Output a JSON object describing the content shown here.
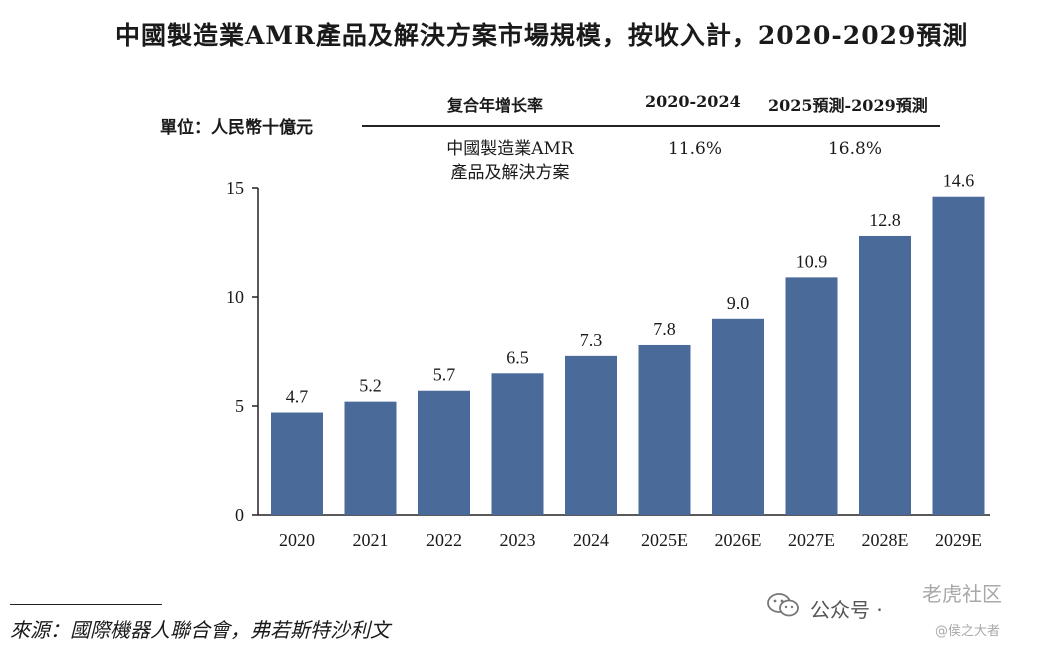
{
  "title": "中國製造業AMR產品及解決方案市場規模，按收入計，2020-2029預測",
  "unit_label": "單位：人民幣十億元",
  "cagr_table": {
    "header": "复合年增长率",
    "col1": "2020-2024",
    "col2": "2025預測-2029預測",
    "row_label_line1": "中國製造業AMR",
    "row_label_line2": "產品及解決方案",
    "val1": "11.6%",
    "val2": "16.8%"
  },
  "source": "來源：國際機器人聯合會，弗若斯特沙利文",
  "watermark": {
    "label": "公众号 ·",
    "brand": "老虎社区",
    "handle": "@侯之大者"
  },
  "colors": {
    "bar": "#4a6a9a",
    "text": "#1a1a1a"
  },
  "chart_data": {
    "type": "bar",
    "categories": [
      "2020",
      "2021",
      "2022",
      "2023",
      "2024",
      "2025E",
      "2026E",
      "2027E",
      "2028E",
      "2029E"
    ],
    "values": [
      4.7,
      5.2,
      5.7,
      6.5,
      7.3,
      7.8,
      9.0,
      10.9,
      12.8,
      14.6
    ],
    "data_labels": [
      "4.7",
      "5.2",
      "5.7",
      "6.5",
      "7.3",
      "7.8",
      "9.0",
      "10.9",
      "12.8",
      "14.6"
    ],
    "yticks": [
      0,
      5,
      10,
      15
    ],
    "ylim": [
      0,
      15
    ],
    "xlabel": "",
    "ylabel": "",
    "title": "中國製造業AMR產品及解決方案市場規模，按收入計，2020-2029預測"
  }
}
